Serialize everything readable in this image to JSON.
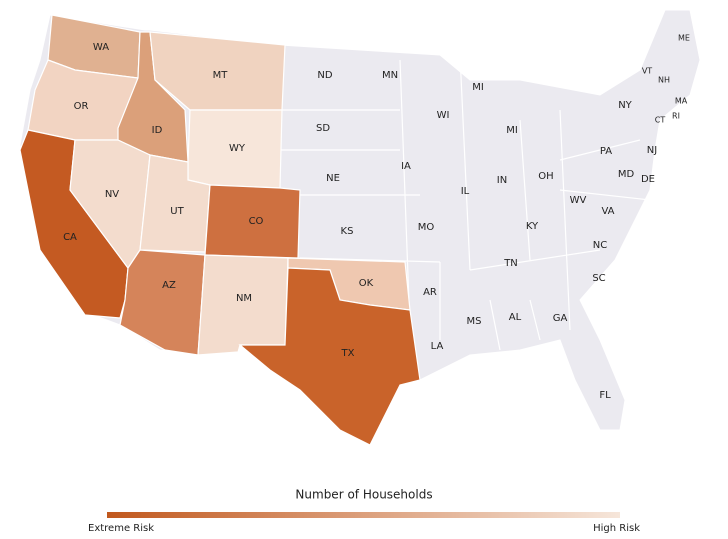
{
  "states": [
    {
      "label": "WA",
      "color": "#e0b191"
    },
    {
      "label": "OR",
      "color": "#f2d4c2"
    },
    {
      "label": "ID",
      "color": "#dba07a"
    },
    {
      "label": "MT",
      "color": "#f0d3c0"
    },
    {
      "label": "WY",
      "color": "#f7e6da"
    },
    {
      "label": "CA",
      "color": "#c45a22"
    },
    {
      "label": "NV",
      "color": "#f3dccd"
    },
    {
      "label": "UT",
      "color": "#f3dccd"
    },
    {
      "label": "CO",
      "color": "#ce7040"
    },
    {
      "label": "AZ",
      "color": "#d5845a"
    },
    {
      "label": "NM",
      "color": "#f3dccd"
    },
    {
      "label": "OK",
      "color": "#efc8b0"
    },
    {
      "label": "TX",
      "color": "#c9632a"
    },
    {
      "label": "ND"
    },
    {
      "label": "MN"
    },
    {
      "label": "MI"
    },
    {
      "label": "MI"
    },
    {
      "label": "WI"
    },
    {
      "label": "SD"
    },
    {
      "label": "IA"
    },
    {
      "label": "NE"
    },
    {
      "label": "IL"
    },
    {
      "label": "IN"
    },
    {
      "label": "OH"
    },
    {
      "label": "KS"
    },
    {
      "label": "MO"
    },
    {
      "label": "KY"
    },
    {
      "label": "WV"
    },
    {
      "label": "VA"
    },
    {
      "label": "NC"
    },
    {
      "label": "TN"
    },
    {
      "label": "SC"
    },
    {
      "label": "AR"
    },
    {
      "label": "MS"
    },
    {
      "label": "AL"
    },
    {
      "label": "GA"
    },
    {
      "label": "LA"
    },
    {
      "label": "FL"
    },
    {
      "label": "ME"
    },
    {
      "label": "VT"
    },
    {
      "label": "NH"
    },
    {
      "label": "MA"
    },
    {
      "label": "NY"
    },
    {
      "label": "CT"
    },
    {
      "label": "RI"
    },
    {
      "label": "PA"
    },
    {
      "label": "NJ"
    },
    {
      "label": "MD"
    },
    {
      "label": "DE"
    }
  ],
  "legend": {
    "title": "Number of Households",
    "low_label": "Extreme Risk",
    "high_label": "High Risk",
    "colors": [
      "#c1581d",
      "#f6e6da"
    ]
  }
}
